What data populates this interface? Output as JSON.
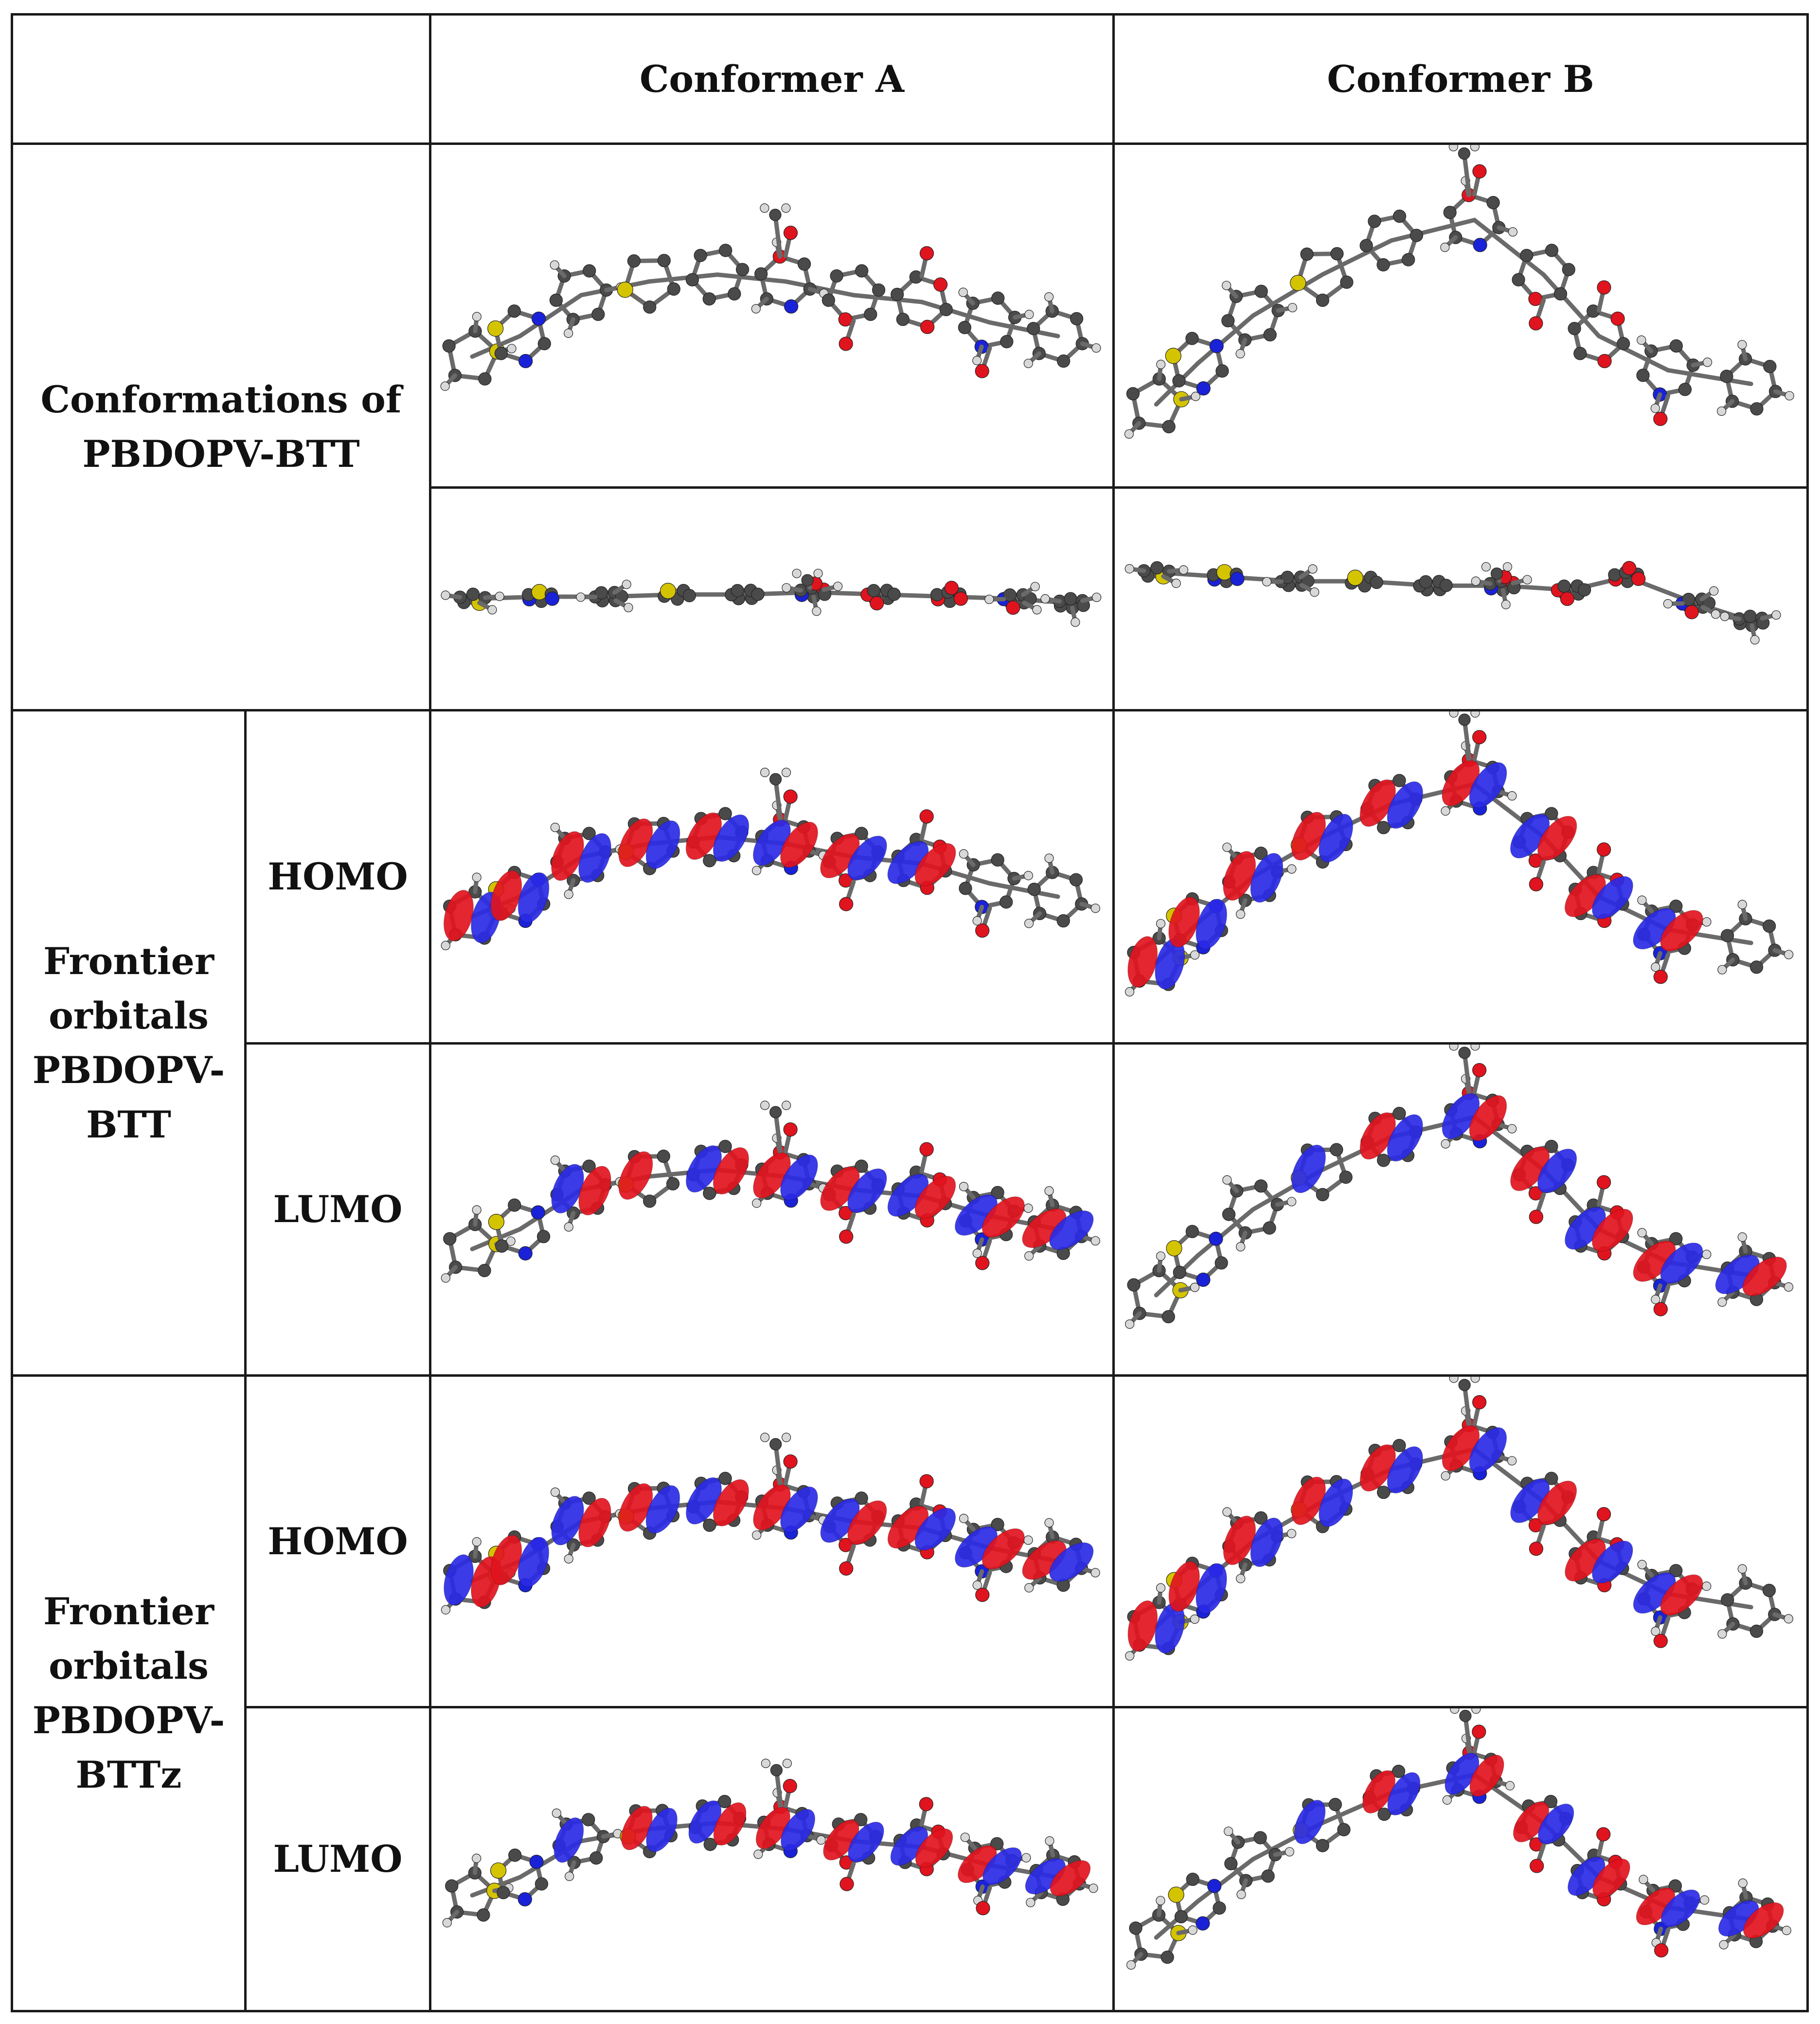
{
  "table": {
    "columns": {
      "conformer_a": "Conformer A",
      "conformer_b": "Conformer B"
    },
    "row_groups": {
      "conformations": {
        "line1": "Conformations of",
        "line2": "PBDOPV-BTT"
      },
      "frontier_btt": {
        "line1": "Frontier",
        "line2": "orbitals",
        "line3": "PBDOPV-",
        "line4": "BTT"
      },
      "frontier_bttz": {
        "line1": "Frontier",
        "line2": "orbitals",
        "line3": "PBDOPV-",
        "line4": "BTTz"
      }
    },
    "orbital_labels": {
      "btt_homo": "HOMO",
      "btt_lumo": "LUMO",
      "bttz_homo": "HOMO",
      "bttz_lumo": "LUMO"
    }
  },
  "colors": {
    "carbon": "#4a4a4a",
    "hydrogen": "#d8d8d8",
    "oxygen": "#e0141e",
    "nitrogen": "#1a22d8",
    "sulfur": "#d4c400",
    "lobe_positive": "#e1141e",
    "lobe_negative": "#2a2ae6"
  }
}
